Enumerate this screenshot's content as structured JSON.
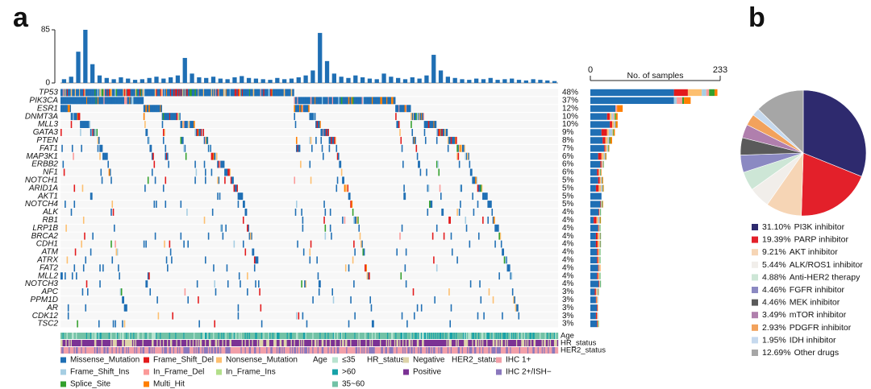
{
  "panels": [
    "a",
    "b"
  ],
  "chart_data": [
    {
      "type": "bar",
      "color": "#1f6fb4",
      "ylim": [
        0,
        85
      ],
      "yticks": [
        0,
        85
      ],
      "values": [
        6,
        10,
        50,
        85,
        30,
        12,
        8,
        6,
        9,
        7,
        5,
        6,
        8,
        10,
        7,
        9,
        12,
        40,
        15,
        9,
        8,
        10,
        7,
        6,
        9,
        11,
        8,
        7,
        6,
        5,
        8,
        6,
        7,
        9,
        12,
        20,
        80,
        35,
        15,
        10,
        8,
        12,
        9,
        7,
        6,
        15,
        10,
        8,
        6,
        9,
        7,
        12,
        45,
        20,
        10,
        8,
        6,
        5,
        7,
        6,
        8,
        5,
        6,
        7,
        5,
        4,
        6,
        5,
        4,
        3
      ]
    },
    {
      "type": "oncoplot",
      "categories": [
        "TP53",
        "PIK3CA",
        "ESR1",
        "DNMT3A",
        "MLL3",
        "GATA3",
        "PTEN",
        "FAT1",
        "MAP3K1",
        "ERBB2",
        "NF1",
        "NOTCH1",
        "ARID1A",
        "AKT1",
        "NOTCH4",
        "ALK",
        "RB1",
        "LRP1B",
        "BRCA2",
        "CDH1",
        "ATM",
        "ATRX",
        "FAT2",
        "MLL2",
        "NOTCH3",
        "APC",
        "PPM1D",
        "AR",
        "CDK12",
        "TSC2"
      ],
      "values": [
        48,
        37,
        12,
        10,
        10,
        9,
        8,
        7,
        6,
        6,
        6,
        5,
        5,
        5,
        5,
        4,
        4,
        4,
        4,
        4,
        4,
        4,
        4,
        4,
        4,
        3,
        3,
        3,
        3,
        3
      ],
      "value_labels": [
        "48%",
        "37%",
        "12%",
        "10%",
        "10%",
        "9%",
        "8%",
        "7%",
        "6%",
        "6%",
        "6%",
        "5%",
        "5%",
        "5%",
        "5%",
        "4%",
        "4%",
        "4%",
        "4%",
        "4%",
        "4%",
        "4%",
        "4%",
        "4%",
        "4%",
        "3%",
        "3%",
        "3%",
        "3%",
        "3%"
      ],
      "xlabel": "No. of samples",
      "xlim": [
        0,
        233
      ],
      "xticks": [
        0,
        233
      ],
      "series": [
        {
          "name": "Missense_Mutation",
          "color": "#1f6fb4",
          "values": [
            150,
            150,
            45,
            30,
            35,
            20,
            22,
            25,
            14,
            18,
            12,
            14,
            10,
            20,
            18,
            15,
            6,
            14,
            10,
            10,
            12,
            12,
            14,
            12,
            15,
            8,
            10,
            12,
            10,
            12
          ]
        },
        {
          "name": "Frame_Shift_Del",
          "color": "#e31a1c",
          "values": [
            25,
            0,
            0,
            5,
            4,
            10,
            5,
            2,
            6,
            2,
            3,
            3,
            5,
            0,
            1,
            1,
            5,
            1,
            3,
            3,
            2,
            2,
            1,
            2,
            1,
            2,
            1,
            1,
            2,
            1
          ]
        },
        {
          "name": "Nonsense_Mutation",
          "color": "#fdbf6f",
          "values": [
            25,
            0,
            0,
            3,
            3,
            3,
            4,
            3,
            4,
            1,
            2,
            2,
            4,
            0,
            1,
            1,
            3,
            1,
            3,
            3,
            2,
            2,
            1,
            2,
            1,
            2,
            2,
            1,
            1,
            1
          ]
        },
        {
          "name": "Frame_Shift_Ins",
          "color": "#a6cee3",
          "values": [
            8,
            5,
            0,
            3,
            2,
            6,
            2,
            2,
            2,
            1,
            1,
            1,
            2,
            0,
            1,
            1,
            2,
            1,
            1,
            1,
            1,
            1,
            1,
            1,
            1,
            1,
            1,
            0,
            1,
            0
          ]
        },
        {
          "name": "In_Frame_Del",
          "color": "#fb9a99",
          "values": [
            5,
            10,
            3,
            2,
            1,
            1,
            1,
            0,
            1,
            1,
            0,
            1,
            1,
            0,
            0,
            0,
            1,
            0,
            1,
            1,
            0,
            0,
            0,
            0,
            0,
            1,
            0,
            0,
            0,
            0
          ]
        },
        {
          "name": "In_Frame_Ins",
          "color": "#b2df8a",
          "values": [
            0,
            0,
            0,
            1,
            0,
            1,
            0,
            0,
            0,
            0,
            0,
            0,
            0,
            0,
            0,
            0,
            0,
            0,
            0,
            0,
            0,
            0,
            0,
            0,
            0,
            0,
            0,
            0,
            0,
            0
          ]
        },
        {
          "name": "Splice_Site",
          "color": "#33a02c",
          "values": [
            10,
            3,
            0,
            2,
            1,
            1,
            2,
            1,
            1,
            1,
            1,
            1,
            1,
            0,
            1,
            1,
            1,
            1,
            1,
            1,
            1,
            1,
            0,
            1,
            1,
            1,
            0,
            0,
            0,
            1
          ]
        },
        {
          "name": "Multi_Hit",
          "color": "#ff7f00",
          "values": [
            5,
            12,
            10,
            3,
            3,
            2,
            3,
            1,
            1,
            0,
            1,
            1,
            1,
            0,
            1,
            0,
            1,
            0,
            0,
            0,
            0,
            0,
            1,
            0,
            0,
            0,
            0,
            0,
            0,
            0
          ]
        }
      ],
      "legend_order": [
        0,
        3,
        6,
        1,
        4,
        7,
        2,
        5
      ],
      "tracks": [
        {
          "name": "Age",
          "levels": [
            {
              "name": "≤35",
              "color": "#b8e3cf"
            },
            {
              "name": ">60",
              "color": "#17a2a8"
            },
            {
              "name": "35~60",
              "color": "#72c2a6"
            }
          ]
        },
        {
          "name": "HR_status",
          "levels": [
            {
              "name": "Negative",
              "color": "#ddd3a8"
            },
            {
              "name": "Positive",
              "color": "#7b3294"
            }
          ]
        },
        {
          "name": "HER2_status",
          "levels": [
            {
              "name": "IHC 1+",
              "color": "#f29fa8"
            },
            {
              "name": "IHC 2+/ISH−",
              "color": "#8a78bd"
            }
          ]
        }
      ]
    },
    {
      "type": "pie",
      "categories": [
        "PI3K inhibitor",
        "PARP inhibitor",
        "AKT  inhibitor",
        "ALK/ROS1 inhibitor",
        "Anti-HER2 therapy",
        "FGFR inhibitor",
        "MEK inhibitor",
        "mTOR inhibitor",
        "PDGFR inhibitor",
        "IDH inhibitor",
        "Other drugs"
      ],
      "values": [
        31.1,
        19.39,
        9.21,
        5.44,
        4.88,
        4.46,
        4.46,
        3.49,
        2.93,
        1.95,
        12.69
      ],
      "value_labels": [
        "31.10%",
        "19.39%",
        "9.21%",
        "5.44%",
        "4.88%",
        "4.46%",
        "4.46%",
        "3.49%",
        "2.93%",
        "1.95%",
        "12.69%"
      ],
      "colors": [
        "#2e2a6e",
        "#e3202a",
        "#f6d5b5",
        "#f1eeea",
        "#cde6d6",
        "#8b89c2",
        "#5a5a5a",
        "#b07fad",
        "#f2a25c",
        "#c6d9ee",
        "#a6a6a6"
      ]
    }
  ]
}
